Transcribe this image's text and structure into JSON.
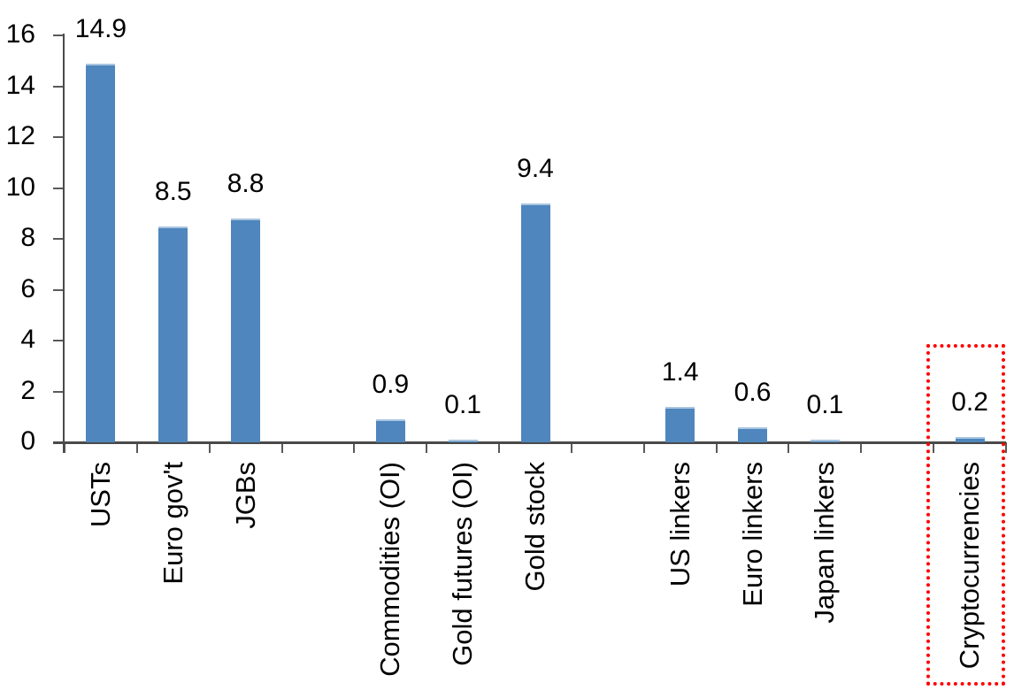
{
  "chart_data": {
    "type": "bar",
    "title": "",
    "xlabel": "",
    "ylabel": "",
    "categories": [
      "USTs",
      "Euro gov't",
      "JGBs",
      "Commodities (OI)",
      "Gold futures (OI)",
      "Gold stock",
      "US linkers",
      "Euro linkers",
      "Japan linkers",
      "Cryptocurrencies"
    ],
    "values": [
      14.9,
      8.5,
      8.8,
      0.9,
      0.1,
      9.4,
      1.4,
      0.6,
      0.1,
      0.2
    ],
    "value_labels": [
      "14.9",
      "8.5",
      "8.8",
      "0.9",
      "0.1",
      "9.4",
      "1.4",
      "0.6",
      "0.1",
      "0.2"
    ],
    "slots": [
      0,
      1,
      2,
      4,
      5,
      6,
      8,
      9,
      10,
      12
    ],
    "total_slots": 13,
    "ylim": [
      0,
      16
    ],
    "yticks": [
      0,
      2,
      4,
      6,
      8,
      10,
      12,
      14,
      16
    ],
    "grid": false,
    "legend": false,
    "bar_color": "#4e86bd",
    "bar_top_highlight_color": "#a9c5e0",
    "axis_color": "#4a4a4a",
    "tick_color": "#595959",
    "text_color": "#000000",
    "highlight_box": {
      "category": "Cryptocurrencies",
      "category_index": 9,
      "border_color": "#ff0000",
      "border_style": "dotted"
    }
  }
}
